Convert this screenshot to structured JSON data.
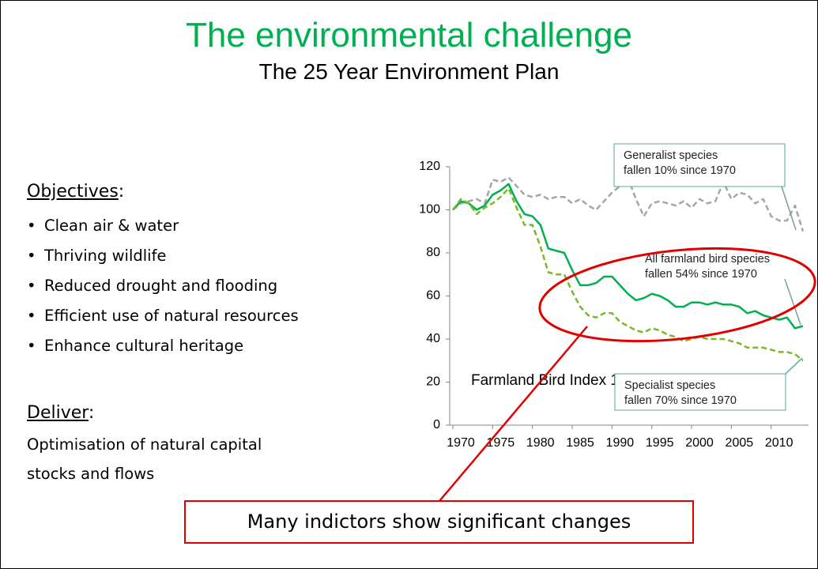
{
  "title": "The environmental challenge",
  "subtitle": "The 25 Year Environment Plan",
  "objectives": {
    "heading": [
      "Objectives",
      ":"
    ],
    "items": [
      "Clean air & water",
      "Thriving wildlife",
      "Reduced drought and flooding",
      "Efficient use of natural resources",
      "Enhance cultural heritage"
    ]
  },
  "deliver": {
    "heading": [
      "Deliver",
      ":"
    ],
    "lines": [
      "Optimisation of natural capital",
      "stocks and flows"
    ]
  },
  "callout": "Many indictors show significant changes",
  "chart_data": {
    "type": "line",
    "annotation": "Farmland Bird Index 1970=100",
    "callouts": [
      {
        "lines": [
          "Generalist species",
          "fallen 10% since 1970"
        ]
      },
      {
        "lines": [
          "All farmland bird species",
          "fallen 54% since 1970"
        ]
      },
      {
        "lines": [
          "Specialist species",
          "fallen 70% since 1970"
        ]
      }
    ],
    "x": [
      1970,
      1971,
      1972,
      1973,
      1974,
      1975,
      1976,
      1977,
      1978,
      1979,
      1980,
      1981,
      1982,
      1983,
      1984,
      1985,
      1986,
      1987,
      1988,
      1989,
      1990,
      1991,
      1992,
      1993,
      1994,
      1995,
      1996,
      1997,
      1998,
      1999,
      2000,
      2001,
      2002,
      2003,
      2004,
      2005,
      2006,
      2007,
      2008,
      2009,
      2010,
      2011,
      2012,
      2013,
      2014
    ],
    "series": [
      {
        "name": "Generalist species",
        "color": "#a6a6a6",
        "style": "dashed",
        "values": [
          100,
          103,
          104,
          105,
          103,
          114,
          113,
          115,
          111,
          107,
          106,
          107,
          105,
          106,
          106,
          103,
          105,
          102,
          100,
          104,
          108,
          111,
          115,
          105,
          97,
          103,
          104,
          103,
          102,
          104,
          101,
          105,
          103,
          104,
          113,
          105,
          108,
          107,
          103,
          105,
          97,
          95,
          95,
          102,
          90
        ]
      },
      {
        "name": "All farmland bird species",
        "color": "#00b050",
        "style": "solid",
        "values": [
          100,
          104,
          103,
          100,
          102,
          107,
          109,
          112,
          104,
          98,
          97,
          93,
          82,
          81,
          80,
          72,
          65,
          65,
          66,
          69,
          69,
          65,
          61,
          58,
          59,
          61,
          60,
          58,
          55,
          55,
          57,
          57,
          56,
          57,
          56,
          56,
          55,
          52,
          53,
          51,
          50,
          49,
          50,
          45,
          46
        ]
      },
      {
        "name": "Specialist species",
        "color": "#7ab828",
        "style": "dashed",
        "values": [
          100,
          105,
          103,
          98,
          101,
          103,
          106,
          110,
          101,
          93,
          93,
          83,
          71,
          70,
          70,
          62,
          55,
          51,
          50,
          52,
          52,
          48,
          46,
          44,
          43,
          45,
          44,
          42,
          41,
          39,
          40,
          41,
          40,
          40,
          40,
          39,
          38,
          36,
          36,
          36,
          35,
          34,
          34,
          33,
          30
        ]
      }
    ],
    "xlim": [
      1969.6,
      2014.7
    ],
    "xticks": [
      1970,
      1975,
      1980,
      1985,
      1990,
      1995,
      2000,
      2005,
      2010
    ],
    "ylim": [
      0,
      120
    ],
    "yticks": [
      0,
      20,
      40,
      60,
      80,
      100,
      120
    ]
  }
}
